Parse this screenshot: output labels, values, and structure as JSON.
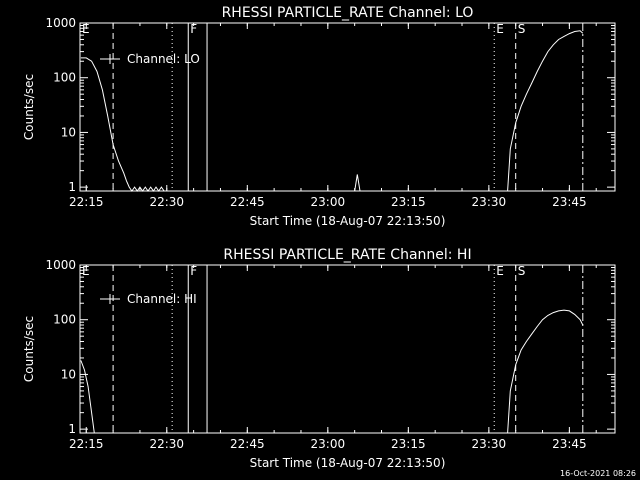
{
  "figure": {
    "background_color": "#000000",
    "foreground_color": "#ffffff",
    "timestamp": "16-Oct-2021 08:26"
  },
  "chart_data": [
    {
      "type": "line",
      "title": "RHESSI PARTICLE_RATE Channel: LO",
      "xlabel": "Start Time (18-Aug-07 22:13:50)",
      "ylabel": "Counts/sec",
      "y_scale": "log",
      "xlim": [
        "22:13:50",
        "23:53:30"
      ],
      "ylim": [
        0.85,
        1000
      ],
      "x_ticks": [
        "22:15",
        "22:30",
        "22:45",
        "23:00",
        "23:15",
        "23:30",
        "23:45"
      ],
      "y_ticks": [
        "1",
        "10",
        "100",
        "1000"
      ],
      "legend": {
        "position": "top-left",
        "entries": [
          "Channel: LO"
        ]
      },
      "markers": [
        {
          "label": "E",
          "time": "22:13:50",
          "style": "dotted"
        },
        {
          "label": "",
          "time": "22:20:00",
          "style": "dashed"
        },
        {
          "label": "",
          "time": "22:31:00",
          "style": "dotted"
        },
        {
          "label": "F",
          "time": "22:34:00",
          "style": "solid"
        },
        {
          "label": "",
          "time": "22:37:30",
          "style": "solid"
        },
        {
          "label": "E",
          "time": "23:31:00",
          "style": "dotted"
        },
        {
          "label": "S",
          "time": "23:35:00",
          "style": "dashed"
        },
        {
          "label": "",
          "time": "23:47:30",
          "style": "dashdot"
        }
      ],
      "series": [
        {
          "x": [
            "22:14:00",
            "22:15:00",
            "22:16:00",
            "22:17:00",
            "22:18:00",
            "22:19:00",
            "22:20:00",
            "22:21:00",
            "22:22:00",
            "22:22:30",
            "22:23:00",
            "22:23:30",
            "22:24:00",
            "22:24:30",
            "22:25:00",
            "22:25:30",
            "22:26:00",
            "22:26:30",
            "22:27:00",
            "22:27:30",
            "22:28:00",
            "22:28:30",
            "22:29:00",
            "22:29:30",
            "22:30:00",
            "22:40:00",
            "23:00:00",
            "23:05:00",
            "23:05:30",
            "23:06:00",
            "23:20:00",
            "23:33:30",
            "23:34:00",
            "23:35:00",
            "23:36:00",
            "23:37:00",
            "23:38:00",
            "23:39:00",
            "23:40:00",
            "23:41:00",
            "23:42:00",
            "23:43:00",
            "23:44:00",
            "23:45:00",
            "23:46:00",
            "23:47:00",
            "23:47:30"
          ],
          "values": [
            230,
            230,
            200,
            130,
            60,
            20,
            6,
            3,
            1.8,
            1.3,
            1,
            0.85,
            1,
            0.85,
            1,
            0.85,
            1,
            0.85,
            1,
            0.85,
            1,
            0.85,
            1,
            0.85,
            0.85,
            0.85,
            0.85,
            0.85,
            1.7,
            0.85,
            0.85,
            0.85,
            5,
            15,
            30,
            50,
            80,
            130,
            200,
            300,
            400,
            500,
            570,
            640,
            700,
            720,
            650
          ]
        }
      ]
    },
    {
      "type": "line",
      "title": "RHESSI PARTICLE_RATE Channel: HI",
      "xlabel": "Start Time (18-Aug-07 22:13:50)",
      "ylabel": "Counts/sec",
      "y_scale": "log",
      "xlim": [
        "22:13:50",
        "23:53:30"
      ],
      "ylim": [
        0.85,
        1000
      ],
      "x_ticks": [
        "22:15",
        "22:30",
        "22:45",
        "23:00",
        "23:15",
        "23:30",
        "23:45"
      ],
      "y_ticks": [
        "1",
        "10",
        "100",
        "1000"
      ],
      "legend": {
        "position": "top-left",
        "entries": [
          "Channel: HI"
        ]
      },
      "markers": [
        {
          "label": "E",
          "time": "22:13:50",
          "style": "dotted"
        },
        {
          "label": "",
          "time": "22:20:00",
          "style": "dashed"
        },
        {
          "label": "",
          "time": "22:31:00",
          "style": "dotted"
        },
        {
          "label": "F",
          "time": "22:34:00",
          "style": "solid"
        },
        {
          "label": "",
          "time": "22:37:30",
          "style": "solid"
        },
        {
          "label": "E",
          "time": "23:31:00",
          "style": "dotted"
        },
        {
          "label": "S",
          "time": "23:35:00",
          "style": "dashed"
        },
        {
          "label": "",
          "time": "23:47:30",
          "style": "dashdot"
        }
      ],
      "series": [
        {
          "x": [
            "22:14:00",
            "22:14:40",
            "22:15:20",
            "22:16:00",
            "22:16:30",
            "22:17:00",
            "22:30:00",
            "23:00:00",
            "23:20:00",
            "23:33:30",
            "23:34:00",
            "23:35:00",
            "23:36:00",
            "23:37:00",
            "23:38:00",
            "23:39:00",
            "23:40:00",
            "23:41:00",
            "23:42:00",
            "23:43:00",
            "23:44:00",
            "23:45:00",
            "23:46:00",
            "23:47:00",
            "23:47:30"
          ],
          "values": [
            18,
            12,
            6,
            2,
            0.85,
            0.85,
            0.85,
            0.85,
            0.85,
            0.85,
            5,
            15,
            28,
            40,
            55,
            75,
            100,
            120,
            135,
            145,
            150,
            145,
            125,
            100,
            80
          ]
        }
      ]
    }
  ]
}
